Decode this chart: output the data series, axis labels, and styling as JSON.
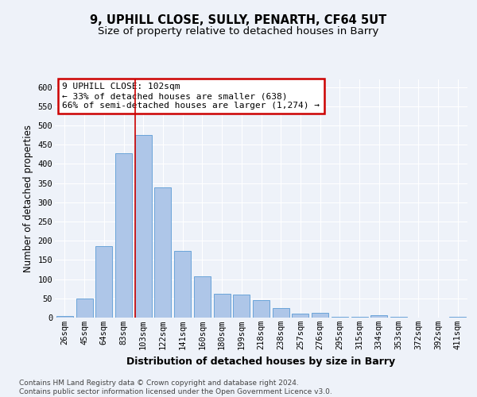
{
  "title1": "9, UPHILL CLOSE, SULLY, PENARTH, CF64 5UT",
  "title2": "Size of property relative to detached houses in Barry",
  "xlabel": "Distribution of detached houses by size in Barry",
  "ylabel": "Number of detached properties",
  "categories": [
    "26sqm",
    "45sqm",
    "64sqm",
    "83sqm",
    "103sqm",
    "122sqm",
    "141sqm",
    "160sqm",
    "180sqm",
    "199sqm",
    "218sqm",
    "238sqm",
    "257sqm",
    "276sqm",
    "295sqm",
    "315sqm",
    "334sqm",
    "353sqm",
    "372sqm",
    "392sqm",
    "411sqm"
  ],
  "values": [
    5,
    50,
    185,
    428,
    475,
    338,
    173,
    107,
    62,
    60,
    45,
    25,
    10,
    12,
    3,
    3,
    6,
    2,
    1,
    1,
    2
  ],
  "bar_color": "#aec6e8",
  "bar_edge_color": "#5b9bd5",
  "highlight_index": 4,
  "highlight_line_color": "#cc0000",
  "annotation_text": "9 UPHILL CLOSE: 102sqm\n← 33% of detached houses are smaller (638)\n66% of semi-detached houses are larger (1,274) →",
  "annotation_box_color": "#ffffff",
  "annotation_box_edge_color": "#cc0000",
  "footer": "Contains HM Land Registry data © Crown copyright and database right 2024.\nContains public sector information licensed under the Open Government Licence v3.0.",
  "ylim": [
    0,
    620
  ],
  "yticks": [
    0,
    50,
    100,
    150,
    200,
    250,
    300,
    350,
    400,
    450,
    500,
    550,
    600
  ],
  "bg_color": "#eef2f9",
  "grid_color": "#ffffff",
  "title1_fontsize": 10.5,
  "title2_fontsize": 9.5,
  "tick_fontsize": 7.5,
  "xlabel_fontsize": 9,
  "ylabel_fontsize": 8.5,
  "annotation_fontsize": 8
}
